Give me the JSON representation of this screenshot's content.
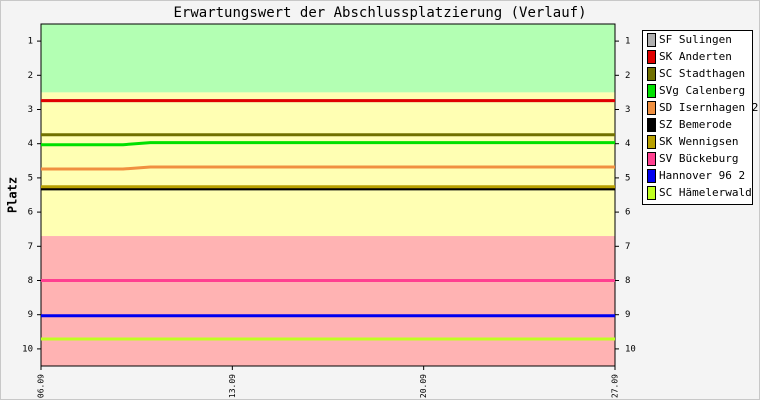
{
  "chart_data": {
    "type": "line",
    "title": "Erwartungswert der Abschlussplatzierung (Verlauf)",
    "y_label": "Platz",
    "categories": [
      "06.09",
      null,
      null,
      null,
      null,
      null,
      null,
      "13.09",
      null,
      null,
      null,
      null,
      null,
      null,
      "20.09",
      null,
      null,
      null,
      null,
      null,
      null,
      "27.09"
    ],
    "ylim": [
      10.5,
      0.5
    ],
    "yticks": [
      1,
      2,
      3,
      4,
      5,
      6,
      7,
      8,
      9,
      10
    ],
    "zones": [
      {
        "from": 0.5,
        "to": 2.5,
        "color": "#b3ffb3"
      },
      {
        "from": 2.5,
        "to": 6.7,
        "color": "#ffffb3"
      },
      {
        "from": 6.7,
        "to": 10.5,
        "color": "#ffb3b3"
      }
    ],
    "series": [
      {
        "name": "SF Sulingen",
        "color": "#b0b0b0",
        "values": [
          2.74,
          2.74,
          2.74,
          2.74,
          2.74,
          2.74,
          2.74,
          2.74,
          2.74,
          2.74,
          2.74,
          2.74,
          2.74,
          2.74,
          2.74,
          2.74,
          2.74,
          2.74,
          2.74,
          2.74,
          2.74,
          2.74
        ]
      },
      {
        "name": "SK Anderten",
        "color": "#e00000",
        "values": [
          2.74,
          2.74,
          2.74,
          2.74,
          2.74,
          2.74,
          2.74,
          2.74,
          2.74,
          2.74,
          2.74,
          2.74,
          2.74,
          2.74,
          2.74,
          2.74,
          2.74,
          2.74,
          2.74,
          2.74,
          2.74,
          2.74
        ]
      },
      {
        "name": "SC Stadthagen",
        "color": "#707000",
        "values": [
          3.74,
          3.74,
          3.74,
          3.74,
          3.74,
          3.74,
          3.74,
          3.74,
          3.74,
          3.74,
          3.74,
          3.74,
          3.74,
          3.74,
          3.74,
          3.74,
          3.74,
          3.74,
          3.74,
          3.74,
          3.74,
          3.74
        ]
      },
      {
        "name": "SVg Calenberg",
        "color": "#00e000",
        "values": [
          4.03,
          4.03,
          4.03,
          4.03,
          3.97,
          3.97,
          3.97,
          3.97,
          3.97,
          3.97,
          3.97,
          3.97,
          3.97,
          3.97,
          3.97,
          3.97,
          3.97,
          3.97,
          3.97,
          3.97,
          3.97,
          3.97
        ]
      },
      {
        "name": "SD Isernhagen 2",
        "color": "#f09040",
        "values": [
          4.74,
          4.74,
          4.74,
          4.74,
          4.68,
          4.68,
          4.68,
          4.68,
          4.68,
          4.68,
          4.68,
          4.68,
          4.68,
          4.68,
          4.68,
          4.68,
          4.68,
          4.68,
          4.68,
          4.68,
          4.68,
          4.68
        ]
      },
      {
        "name": "SZ Bemerode",
        "color": "#000000",
        "values": [
          5.32,
          5.32,
          5.32,
          5.32,
          5.32,
          5.32,
          5.32,
          5.32,
          5.32,
          5.32,
          5.32,
          5.32,
          5.32,
          5.32,
          5.32,
          5.32,
          5.32,
          5.32,
          5.32,
          5.32,
          5.32,
          5.32
        ]
      },
      {
        "name": "SK Wennigsen",
        "color": "#b8a000",
        "values": [
          5.26,
          5.26,
          5.26,
          5.26,
          5.26,
          5.26,
          5.26,
          5.26,
          5.26,
          5.26,
          5.26,
          5.26,
          5.26,
          5.26,
          5.26,
          5.26,
          5.26,
          5.26,
          5.26,
          5.26,
          5.26,
          5.26
        ]
      },
      {
        "name": "SV Bückeburg",
        "color": "#ff4090",
        "values": [
          8.0,
          8.0,
          8.0,
          8.0,
          8.0,
          8.0,
          8.0,
          8.0,
          8.0,
          8.0,
          8.0,
          8.0,
          8.0,
          8.0,
          8.0,
          8.0,
          8.0,
          8.0,
          8.0,
          8.0,
          8.0,
          8.0
        ]
      },
      {
        "name": "Hannover 96 2",
        "color": "#0000f0",
        "values": [
          9.03,
          9.03,
          9.03,
          9.03,
          9.03,
          9.03,
          9.03,
          9.03,
          9.03,
          9.03,
          9.03,
          9.03,
          9.03,
          9.03,
          9.03,
          9.03,
          9.03,
          9.03,
          9.03,
          9.03,
          9.03,
          9.03
        ]
      },
      {
        "name": "SC Hämelerwald",
        "color": "#c0ff20",
        "values": [
          9.71,
          9.71,
          9.71,
          9.71,
          9.71,
          9.71,
          9.71,
          9.71,
          9.71,
          9.71,
          9.71,
          9.71,
          9.71,
          9.71,
          9.71,
          9.71,
          9.71,
          9.71,
          9.71,
          9.71,
          9.71,
          9.71
        ]
      }
    ]
  }
}
